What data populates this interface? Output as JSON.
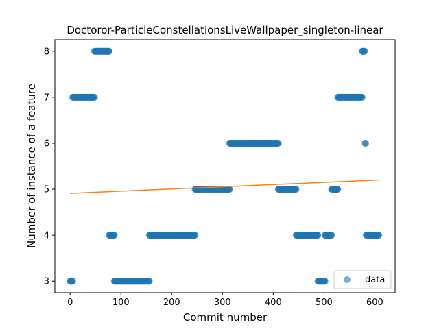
{
  "chart_data": {
    "type": "scatter",
    "title": "Doctoror-ParticleConstellationsLiveWallpaper_singleton-linear",
    "xlabel": "Commit number",
    "ylabel": "Number of instance of a feature",
    "xlim": [
      -30,
      640
    ],
    "ylim": [
      2.75,
      8.25
    ],
    "xticks": [
      0,
      100,
      200,
      300,
      400,
      500,
      600
    ],
    "yticks": [
      3,
      4,
      5,
      6,
      7,
      8
    ],
    "grid": false,
    "legend": {
      "placement": "bottom-right",
      "entries": [
        "data"
      ]
    },
    "colors": {
      "data": "#1f77b4",
      "fit": "#ff7f0e"
    },
    "series": [
      {
        "name": "data",
        "kind": "scatter",
        "segments": [
          {
            "x_start": 0,
            "x_end": 5,
            "y": 3
          },
          {
            "x_start": 5,
            "x_end": 48,
            "y": 7
          },
          {
            "x_start": 48,
            "x_end": 77,
            "y": 8
          },
          {
            "x_start": 77,
            "x_end": 87,
            "y": 4
          },
          {
            "x_start": 87,
            "x_end": 156,
            "y": 3
          },
          {
            "x_start": 156,
            "x_end": 246,
            "y": 4
          },
          {
            "x_start": 246,
            "x_end": 314,
            "y": 5
          },
          {
            "x_start": 314,
            "x_end": 410,
            "y": 6
          },
          {
            "x_start": 410,
            "x_end": 445,
            "y": 5
          },
          {
            "x_start": 445,
            "x_end": 488,
            "y": 4
          },
          {
            "x_start": 488,
            "x_end": 502,
            "y": 3
          },
          {
            "x_start": 502,
            "x_end": 515,
            "y": 4
          },
          {
            "x_start": 515,
            "x_end": 527,
            "y": 5
          },
          {
            "x_start": 527,
            "x_end": 575,
            "y": 7
          },
          {
            "x_start": 575,
            "x_end": 580,
            "y": 8
          },
          {
            "x_start": 581,
            "x_end": 582,
            "y": 6
          },
          {
            "x_start": 583,
            "x_end": 608,
            "y": 4
          }
        ]
      },
      {
        "name": "fit",
        "kind": "line",
        "x": [
          0,
          608
        ],
        "y": [
          4.91,
          5.2
        ]
      }
    ]
  }
}
